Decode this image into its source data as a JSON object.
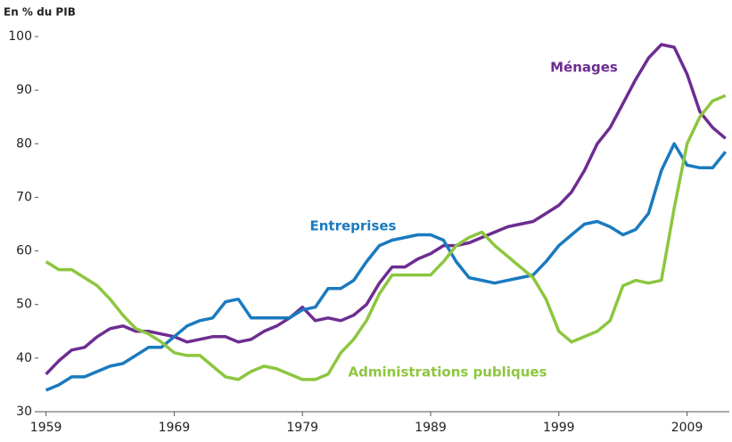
{
  "chart_data": {
    "type": "line",
    "title": "En % du PIB",
    "annotations": [
      "Ménages",
      "Entreprises",
      "Administrations publiques"
    ],
    "x": [
      1959,
      1960,
      1961,
      1962,
      1963,
      1964,
      1965,
      1966,
      1967,
      1968,
      1969,
      1970,
      1971,
      1972,
      1973,
      1974,
      1975,
      1976,
      1977,
      1978,
      1979,
      1980,
      1981,
      1982,
      1983,
      1984,
      1985,
      1986,
      1987,
      1988,
      1989,
      1990,
      1991,
      1992,
      1993,
      1994,
      1995,
      1996,
      1997,
      1998,
      1999,
      2000,
      2001,
      2002,
      2003,
      2004,
      2005,
      2006,
      2007,
      2008,
      2009,
      2010,
      2011,
      2012
    ],
    "series": [
      {
        "name": "Ménages",
        "color": "#6d2d91",
        "values": [
          37,
          39.5,
          41.5,
          42,
          44,
          45.5,
          46,
          45,
          45,
          44.5,
          44,
          43,
          43.5,
          44,
          44,
          43,
          43.5,
          45,
          46,
          47.5,
          49.5,
          47,
          47.5,
          47,
          48,
          50,
          54,
          57,
          57,
          58.5,
          59.5,
          61,
          61,
          61.5,
          62.5,
          63.5,
          64.5,
          65,
          65.5,
          67,
          68.5,
          71,
          75,
          80,
          83,
          87.5,
          92,
          96,
          98.5,
          98,
          93,
          86,
          83,
          81
        ]
      },
      {
        "name": "Entreprises",
        "color": "#1a7abf",
        "values": [
          34,
          35,
          36.5,
          36.5,
          37.5,
          38.5,
          39,
          40.5,
          42,
          42,
          44,
          46,
          47,
          47.5,
          50.5,
          51,
          47.5,
          47.5,
          47.5,
          47.5,
          49,
          49.5,
          53,
          53,
          54.5,
          58,
          61,
          62,
          62.5,
          63,
          63,
          62,
          58,
          55,
          54.5,
          54,
          54.5,
          55,
          55.5,
          58,
          61,
          63,
          65,
          65.5,
          64.5,
          63,
          64,
          67,
          75,
          80,
          76,
          75.5,
          75.5,
          78.5
        ]
      },
      {
        "name": "Administrations publiques",
        "color": "#8dc63f",
        "values": [
          58,
          56.5,
          56.5,
          55,
          53.5,
          51,
          48,
          45.5,
          44.5,
          43,
          41,
          40.5,
          40.5,
          38.5,
          36.5,
          36,
          37.5,
          38.5,
          38,
          37,
          36,
          36,
          37,
          41,
          43.5,
          47,
          52,
          55.5,
          55.5,
          55.5,
          55.5,
          58,
          61,
          62.5,
          63.5,
          61,
          59,
          57,
          55,
          51,
          45,
          43,
          44,
          45,
          47,
          53.5,
          54.5,
          54,
          54.5,
          68,
          80,
          85,
          88,
          89
        ]
      }
    ],
    "xlim": [
      1958.4,
      2012.3
    ],
    "xticks": [
      1959,
      1969,
      1979,
      1989,
      1999,
      2009
    ],
    "ylim": [
      30,
      100
    ],
    "yticks": [
      30,
      40,
      50,
      60,
      70,
      80,
      90,
      100
    ],
    "grid": false
  }
}
